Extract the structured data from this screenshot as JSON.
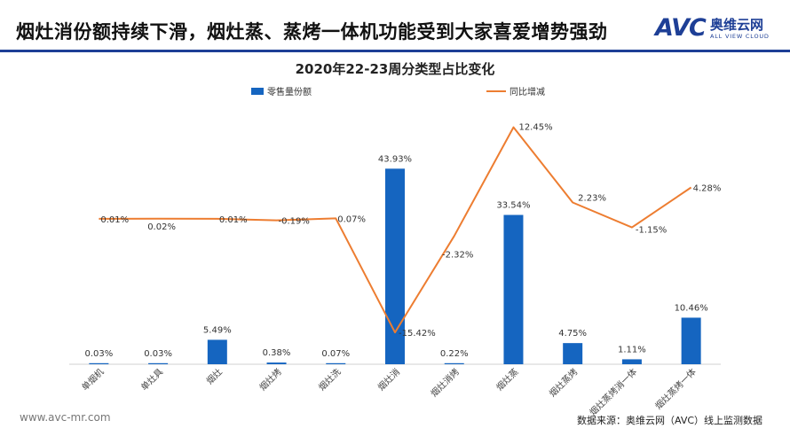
{
  "header": {
    "title": "烟灶消份额持续下滑，烟灶蒸、蒸烤一体机功能受到大家喜爱增势强劲"
  },
  "logo": {
    "text": "AVC",
    "name_cn": "奥维云网",
    "name_en": "ALL VIEW CLOUD"
  },
  "footer": {
    "url": "www.avc-mr.com",
    "source": "数据来源：奥维云网（AVC）线上监测数据"
  },
  "colors": {
    "bar": "#1565c0",
    "line": "#ed7d31",
    "header_rule": "#1e3f96"
  },
  "chart_data": {
    "type": "bar",
    "title": "2020年22-23周分类型占比变化",
    "categories": [
      "单烟机",
      "单灶具",
      "烟灶",
      "烟灶烤",
      "烟灶洗",
      "烟灶消",
      "烟灶消烤",
      "烟灶蒸",
      "烟灶蒸烤",
      "烟灶蒸烤消一体",
      "烟灶蒸烤一体"
    ],
    "series": [
      {
        "name": "零售量份额",
        "type": "bar",
        "values": [
          0.03,
          0.03,
          5.49,
          0.38,
          0.07,
          43.93,
          0.22,
          33.54,
          4.75,
          1.11,
          10.46
        ],
        "labels": [
          "0.03%",
          "0.03%",
          "5.49%",
          "0.38%",
          "0.07%",
          "43.93%",
          "0.22%",
          "33.54%",
          "4.75%",
          "1.11%",
          "10.46%"
        ]
      },
      {
        "name": "同比增减",
        "type": "line",
        "values": [
          0.01,
          0.02,
          0.01,
          -0.19,
          0.07,
          -15.42,
          -2.32,
          12.45,
          2.23,
          -1.15,
          4.28
        ],
        "labels": [
          "0.01%",
          "0.02%",
          "0.01%",
          "-0.19%",
          "0.07%",
          "-15.42%",
          "-2.32%",
          "12.45%",
          "2.23%",
          "-1.15%",
          "4.28%"
        ]
      }
    ],
    "bar_ylim": [
      0,
      50
    ],
    "line_ylim": [
      -20,
      14
    ],
    "legend_position": "top",
    "grid": false
  }
}
